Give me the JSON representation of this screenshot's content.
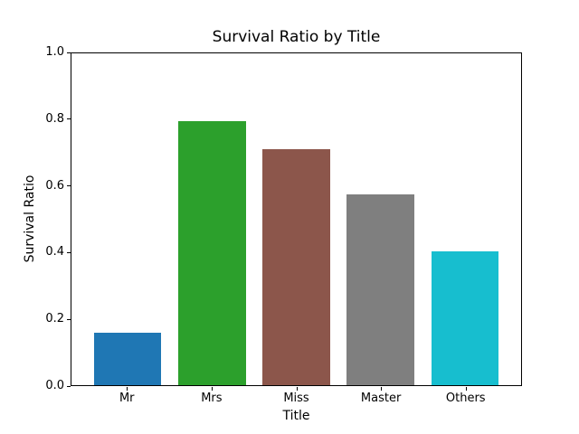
{
  "figure": {
    "background_color": "#ffffff",
    "axes_edge_color": "#000000",
    "text_color": "#000000"
  },
  "chart_data": {
    "type": "bar",
    "title": "Survival Ratio by Title",
    "xlabel": "Title",
    "ylabel": "Survival Ratio",
    "categories": [
      "Mr",
      "Mrs",
      "Miss",
      "Master",
      "Others"
    ],
    "values": [
      0.157,
      0.797,
      0.71,
      0.576,
      0.403
    ],
    "bar_colors": [
      "#1f77b4",
      "#2ca02c",
      "#8c564b",
      "#7f7f7f",
      "#17becf"
    ],
    "ylim": [
      0.0,
      1.0
    ],
    "ytick_labels": [
      "0.0",
      "0.2",
      "0.4",
      "0.6",
      "0.8",
      "1.0"
    ],
    "ytick_values": [
      0.0,
      0.2,
      0.4,
      0.6,
      0.8,
      1.0
    ],
    "grid": false,
    "legend": "none",
    "bar_relative_width": 0.8
  }
}
